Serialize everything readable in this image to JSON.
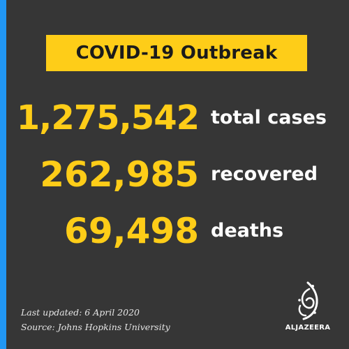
{
  "title": "COVID-19 Outbreak",
  "stats": [
    {
      "value": "1,275,542",
      "label": "total cases"
    },
    {
      "value": "262,985",
      "label": "recovered"
    },
    {
      "value": "69,498",
      "label": "deaths"
    }
  ],
  "footer": {
    "updated": "Last updated: 6 April 2020",
    "source": "Source: Johns Hopkins University"
  },
  "logo": {
    "wordmark": "ALJAZEERA",
    "icon": "al-jazeera-calligraphy-logo-icon"
  },
  "colors": {
    "background": "#363636",
    "accent_bar": "#2196f3",
    "highlight": "#fecd18",
    "label_text": "#ffffff"
  }
}
